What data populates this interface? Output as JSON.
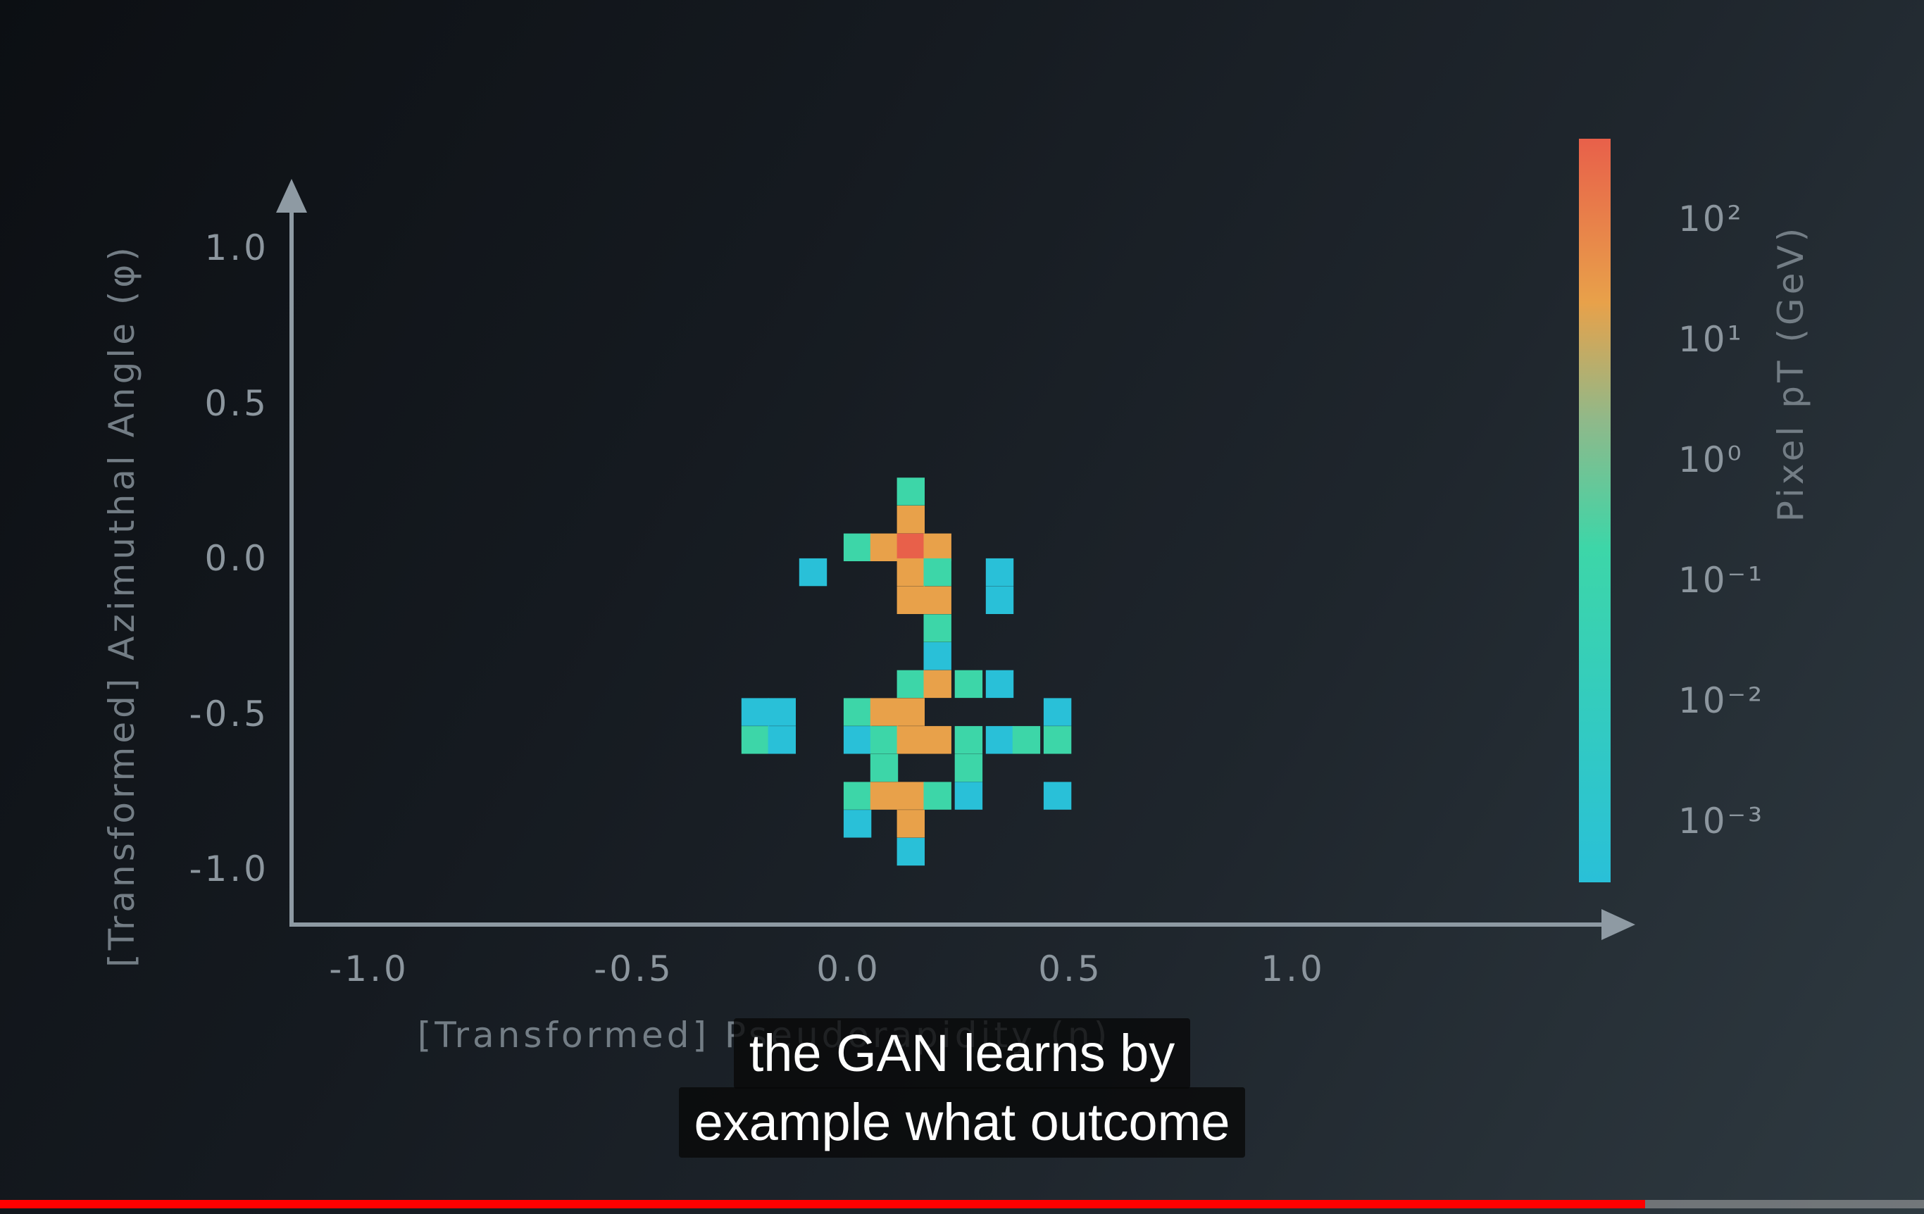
{
  "player": {
    "progress": 0.855,
    "captions": [
      "the GAN learns by",
      "example what outcome"
    ]
  },
  "colors": {
    "axis": "#8e9aa3",
    "progress_played": "#ff0000",
    "progress_buffer": "#9a9a9a",
    "cmap_low": "#29c0d8",
    "cmap_mid_low": "#3dd6a8",
    "cmap_mid": "#e8a14a",
    "cmap_high": "#e8604a"
  },
  "chart_data": {
    "type": "heatmap",
    "title": "",
    "xlabel": "[Transformed] Pseudorapidity (η)",
    "ylabel": "[Transformed] Azimuthal Angle (φ)",
    "xticks": [
      "-1.0",
      "-0.5",
      "0.0",
      "0.5",
      "1.0"
    ],
    "yticks": [
      "1.0",
      "0.5",
      "0.0",
      "-0.5",
      "-1.0"
    ],
    "xlim": [
      -1.2,
      1.6
    ],
    "ylim": [
      -1.2,
      1.2
    ],
    "colorbar": {
      "label": "Pixel pT (GeV)",
      "scale": "log",
      "range": [
        0.0003,
        1000
      ],
      "ticks": [
        {
          "label": "10²",
          "value": 100
        },
        {
          "label": "10¹",
          "value": 10
        },
        {
          "label": "10⁰",
          "value": 1
        },
        {
          "label": "10⁻¹",
          "value": 0.1
        },
        {
          "label": "10⁻²",
          "value": 0.01
        },
        {
          "label": "10⁻³",
          "value": 0.001
        }
      ]
    },
    "cell_size": 0.0625,
    "cells": [
      {
        "x": 0.14,
        "y": 0.22,
        "v": 0.01
      },
      {
        "x": 0.14,
        "y": 0.13,
        "v": 5
      },
      {
        "x": 0.02,
        "y": 0.04,
        "v": 0.01
      },
      {
        "x": 0.08,
        "y": 0.04,
        "v": 5
      },
      {
        "x": 0.14,
        "y": 0.04,
        "v": 400
      },
      {
        "x": 0.2,
        "y": 0.04,
        "v": 5
      },
      {
        "x": -0.08,
        "y": -0.04,
        "v": 0.001
      },
      {
        "x": 0.14,
        "y": -0.04,
        "v": 5
      },
      {
        "x": 0.2,
        "y": -0.04,
        "v": 0.01
      },
      {
        "x": 0.34,
        "y": -0.04,
        "v": 0.001
      },
      {
        "x": 0.14,
        "y": -0.13,
        "v": 5
      },
      {
        "x": 0.2,
        "y": -0.13,
        "v": 5
      },
      {
        "x": 0.34,
        "y": -0.13,
        "v": 0.002
      },
      {
        "x": 0.2,
        "y": -0.22,
        "v": 0.01
      },
      {
        "x": 0.2,
        "y": -0.31,
        "v": 0.005
      },
      {
        "x": 0.14,
        "y": -0.4,
        "v": 0.01
      },
      {
        "x": 0.2,
        "y": -0.4,
        "v": 5
      },
      {
        "x": 0.27,
        "y": -0.4,
        "v": 0.01
      },
      {
        "x": 0.34,
        "y": -0.4,
        "v": 0.001
      },
      {
        "x": -0.21,
        "y": -0.49,
        "v": 0.001
      },
      {
        "x": -0.15,
        "y": -0.49,
        "v": 0.001
      },
      {
        "x": 0.02,
        "y": -0.49,
        "v": 0.01
      },
      {
        "x": 0.08,
        "y": -0.49,
        "v": 3
      },
      {
        "x": 0.14,
        "y": -0.49,
        "v": 5
      },
      {
        "x": 0.47,
        "y": -0.49,
        "v": 0.001
      },
      {
        "x": -0.21,
        "y": -0.58,
        "v": 0.01
      },
      {
        "x": -0.15,
        "y": -0.58,
        "v": 0.001
      },
      {
        "x": 0.02,
        "y": -0.58,
        "v": 0.005
      },
      {
        "x": 0.08,
        "y": -0.58,
        "v": 0.01
      },
      {
        "x": 0.14,
        "y": -0.58,
        "v": 3
      },
      {
        "x": 0.2,
        "y": -0.58,
        "v": 5
      },
      {
        "x": 0.27,
        "y": -0.58,
        "v": 0.01
      },
      {
        "x": 0.34,
        "y": -0.58,
        "v": 0.001
      },
      {
        "x": 0.4,
        "y": -0.58,
        "v": 0.01
      },
      {
        "x": 0.47,
        "y": -0.58,
        "v": 0.01
      },
      {
        "x": 0.08,
        "y": -0.67,
        "v": 0.01
      },
      {
        "x": 0.27,
        "y": -0.67,
        "v": 0.01
      },
      {
        "x": 0.02,
        "y": -0.76,
        "v": 0.01
      },
      {
        "x": 0.08,
        "y": -0.76,
        "v": 5
      },
      {
        "x": 0.14,
        "y": -0.76,
        "v": 3
      },
      {
        "x": 0.2,
        "y": -0.76,
        "v": 0.01
      },
      {
        "x": 0.27,
        "y": -0.76,
        "v": 0.001
      },
      {
        "x": 0.47,
        "y": -0.76,
        "v": 0.001
      },
      {
        "x": 0.02,
        "y": -0.85,
        "v": 0.001
      },
      {
        "x": 0.14,
        "y": -0.85,
        "v": 5
      },
      {
        "x": 0.14,
        "y": -0.94,
        "v": 0.001
      }
    ]
  }
}
